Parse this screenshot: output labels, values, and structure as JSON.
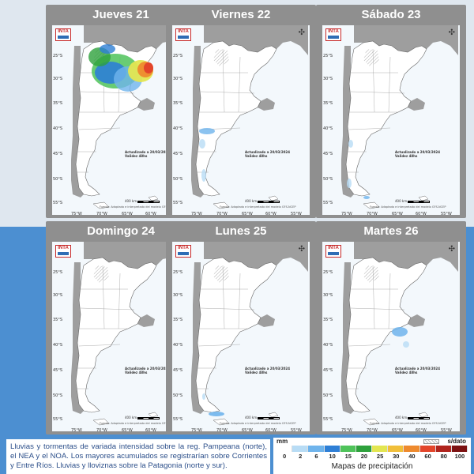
{
  "panels": [
    {
      "day": "Jueves 21",
      "precip": "heavy-north"
    },
    {
      "day": "Viernes 22",
      "precip": "light-patagonia"
    },
    {
      "day": "Sábado 23",
      "precip": "trace-south"
    },
    {
      "day": "Domingo 24",
      "precip": "none"
    },
    {
      "day": "Lunes 25",
      "precip": "south-tip"
    },
    {
      "day": "Martes 26",
      "precip": "central"
    }
  ],
  "map": {
    "logo_text": "INTA",
    "latitudes": [
      "25°S",
      "30°S",
      "35°S",
      "40°S",
      "45°S",
      "50°S",
      "55°S"
    ],
    "longitudes": [
      "75°W",
      "70°W",
      "65°W",
      "60°W",
      "55°W"
    ],
    "update_line1": "Actualizado a 20/03/2024",
    "update_line2": "Validez 48hs",
    "scale_label": "400 km",
    "source": "Fuente: Adaptado e interpretado del modelo GFS-NCEP"
  },
  "description": "Lluvias y tormentas de variada intensidad sobre la reg. Pampeana (norte), el NEA y el NOA. Los mayores acumulados se registrarían sobre Corrientes y Entre Ríos. Lluvias y lloviznas sobre la Patagonia (norte y sur).",
  "legend": {
    "unit": "mm",
    "nodata": "s/dato",
    "title": "Mapas de precipitación",
    "ticks": [
      "0",
      "2",
      "6",
      "10",
      "15",
      "20",
      "25",
      "30",
      "40",
      "60",
      "80",
      "100"
    ],
    "colors": [
      "#ffffff",
      "#b8dcf5",
      "#6fb4ec",
      "#2e7fd6",
      "#4fc35a",
      "#2ea13c",
      "#e3e651",
      "#f1bf3a",
      "#ee8a2e",
      "#e3452a",
      "#b0241d",
      "#7d1212"
    ]
  }
}
